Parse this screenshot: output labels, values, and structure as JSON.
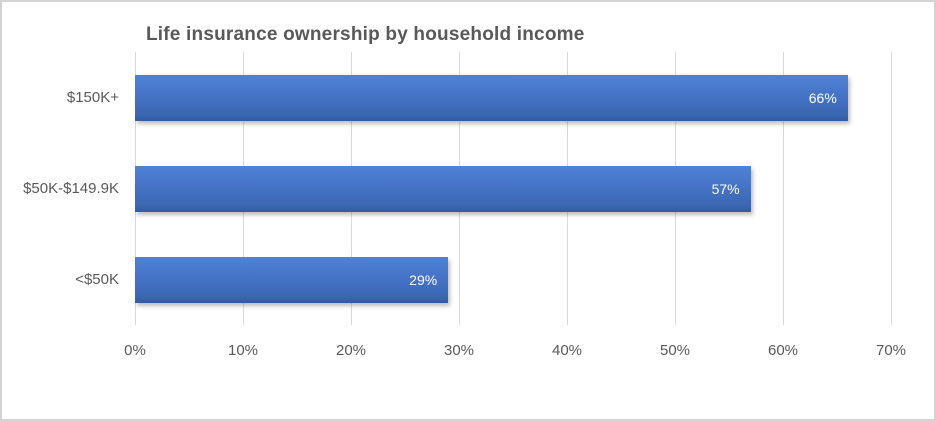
{
  "chart_data": {
    "type": "bar",
    "orientation": "horizontal",
    "title": "Life insurance ownership by household income",
    "categories": [
      "$150K+",
      "$50K-$149.9K",
      "<$50K"
    ],
    "values": [
      66,
      57,
      29
    ],
    "value_labels": [
      "66%",
      "57%",
      "29%"
    ],
    "xlabel": "",
    "ylabel": "",
    "xlim": [
      0,
      70
    ],
    "x_tick_values": [
      0,
      10,
      20,
      30,
      40,
      50,
      60,
      70
    ],
    "x_tick_labels": [
      "0%",
      "10%",
      "20%",
      "30%",
      "40%",
      "50%",
      "60%",
      "70%"
    ],
    "grid": "vertical",
    "legend": "none",
    "data_labels": "inside-end",
    "colors": {
      "bar_top": "#5082d4",
      "bar_mid": "#4472c4",
      "bar_bottom": "#315a9f",
      "gridline": "#d9d9d9",
      "axis_text": "#595959",
      "title_text": "#595959",
      "data_label_text": "#ffffff",
      "frame_border": "#d3d3d3",
      "background": "#ffffff"
    }
  }
}
